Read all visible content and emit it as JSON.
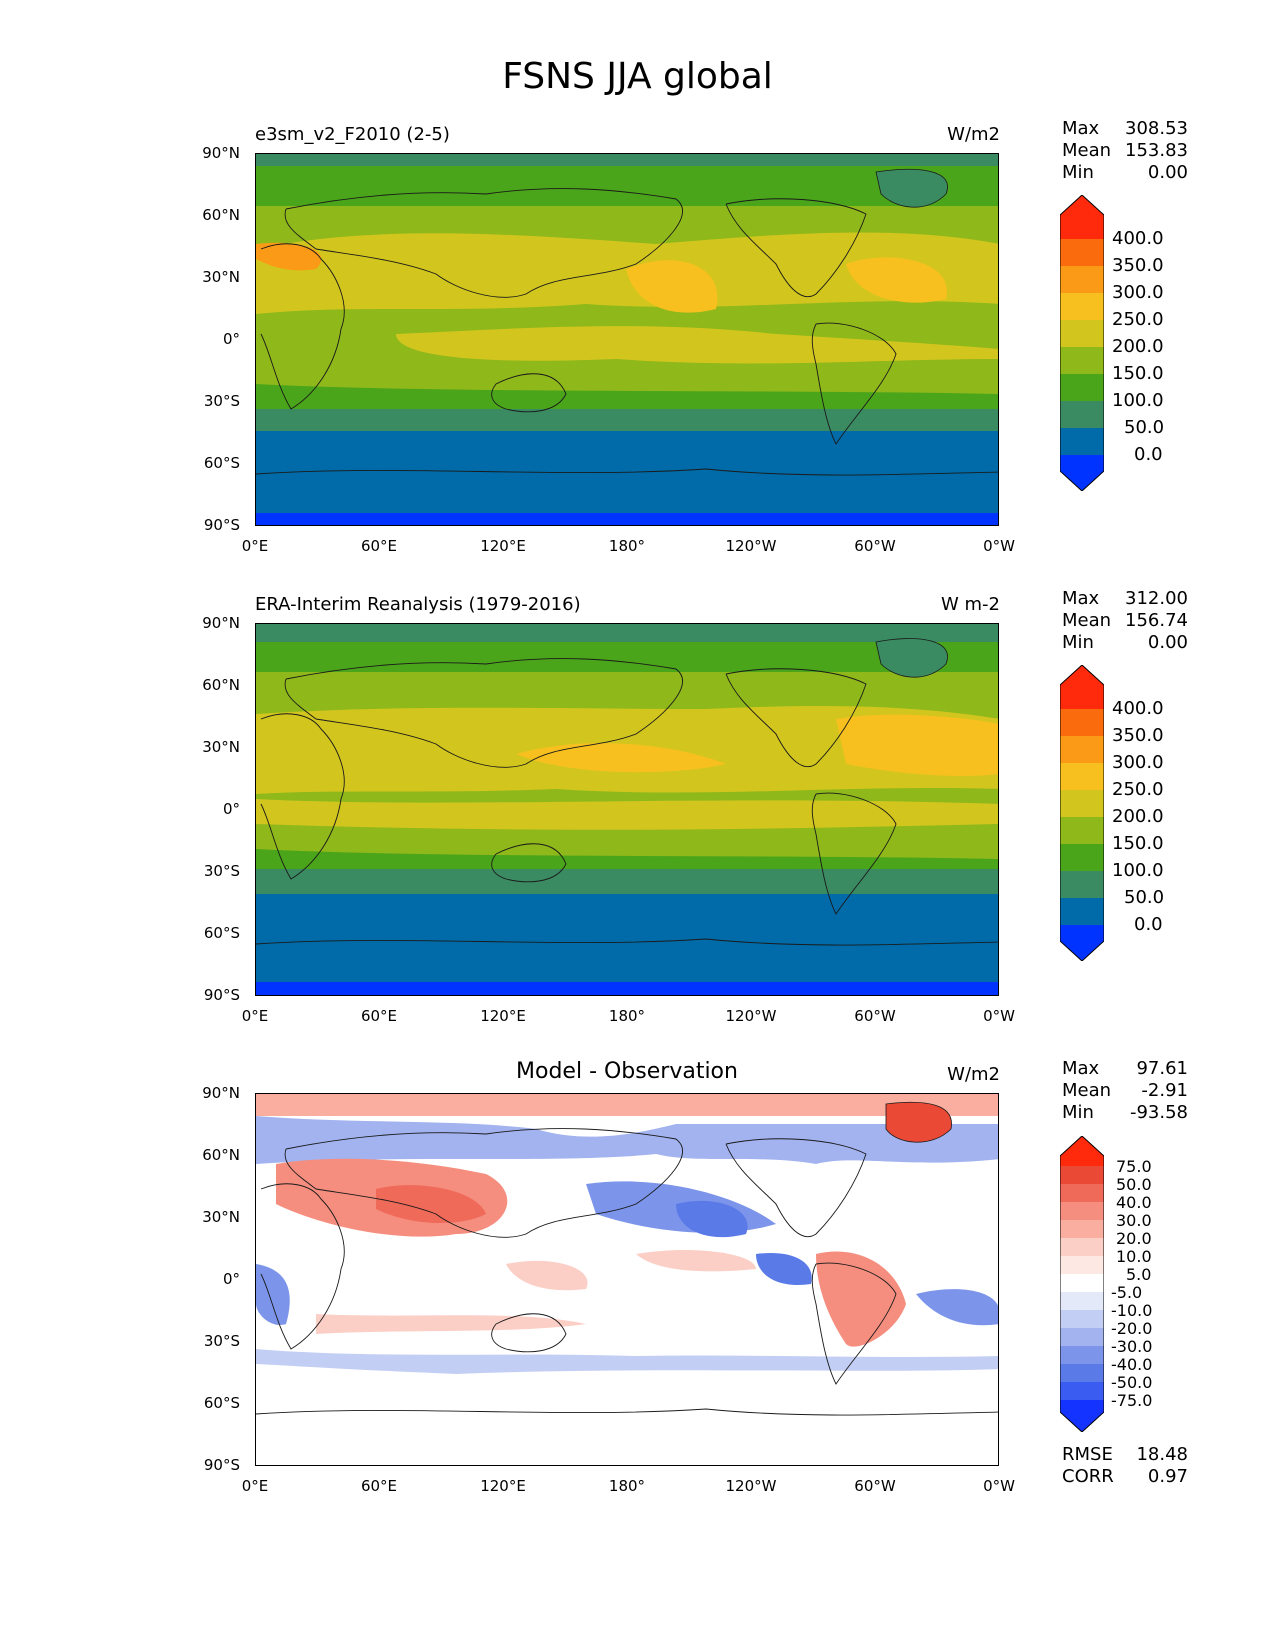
{
  "figure_title": "FSNS JJA global",
  "axes": {
    "lat_ticks": [
      "90°N",
      "60°N",
      "30°N",
      "0°",
      "30°S",
      "60°S",
      "90°S"
    ],
    "lon_ticks": [
      "0°E",
      "60°E",
      "120°E",
      "180°",
      "120°W",
      "60°W",
      "0°W"
    ]
  },
  "panels": [
    {
      "left_title": "e3sm_v2_F2010 (2-5)",
      "center_title": "",
      "units": "W/m2",
      "stats": {
        "max_label": "Max",
        "max": "308.53",
        "mean_label": "Mean",
        "mean": "153.83",
        "min_label": "Min",
        "min": "0.00"
      },
      "colorbar_labels": [
        "400.0",
        "350.0",
        "300.0",
        "250.0",
        "200.0",
        "150.0",
        "100.0",
        "50.0",
        "0.0"
      ]
    },
    {
      "left_title": "ERA-Interim Reanalysis (1979-2016)",
      "center_title": "",
      "units": "W m-2",
      "stats": {
        "max_label": "Max",
        "max": "312.00",
        "mean_label": "Mean",
        "mean": "156.74",
        "min_label": "Min",
        "min": "0.00"
      },
      "colorbar_labels": [
        "400.0",
        "350.0",
        "300.0",
        "250.0",
        "200.0",
        "150.0",
        "100.0",
        "50.0",
        "0.0"
      ]
    },
    {
      "left_title": "",
      "center_title": "Model - Observation",
      "units": "W/m2",
      "stats": {
        "max_label": "Max",
        "max": "97.61",
        "mean_label": "Mean",
        "mean": "-2.91",
        "min_label": "Min",
        "min": "-93.58"
      },
      "colorbar_labels": [
        "75.0",
        "50.0",
        "40.0",
        "30.0",
        "20.0",
        "10.0",
        "5.0",
        "-5.0",
        "-10.0",
        "-20.0",
        "-30.0",
        "-40.0",
        "-50.0",
        "-75.0"
      ],
      "extra_stats": {
        "rmse_label": "RMSE",
        "rmse": "18.48",
        "corr_label": "CORR",
        "corr": "0.97"
      }
    }
  ],
  "colors": {
    "abs_scale": [
      "#0033ff",
      "#006ba8",
      "#3a8a62",
      "#4aa51a",
      "#8fb81a",
      "#d2c61e",
      "#f7c01e",
      "#fb9a16",
      "#fa6b0e",
      "#ff2a0c"
    ],
    "diff_scale": [
      "#1533ff",
      "#3a5cf0",
      "#5a7ae8",
      "#7c95ea",
      "#a2b3ef",
      "#c3cef4",
      "#e4e9fa",
      "#ffffff",
      "#fde8e4",
      "#fccfc6",
      "#f9aea0",
      "#f58e7e",
      "#f06a5a",
      "#ea4936",
      "#ff2a0c"
    ]
  }
}
